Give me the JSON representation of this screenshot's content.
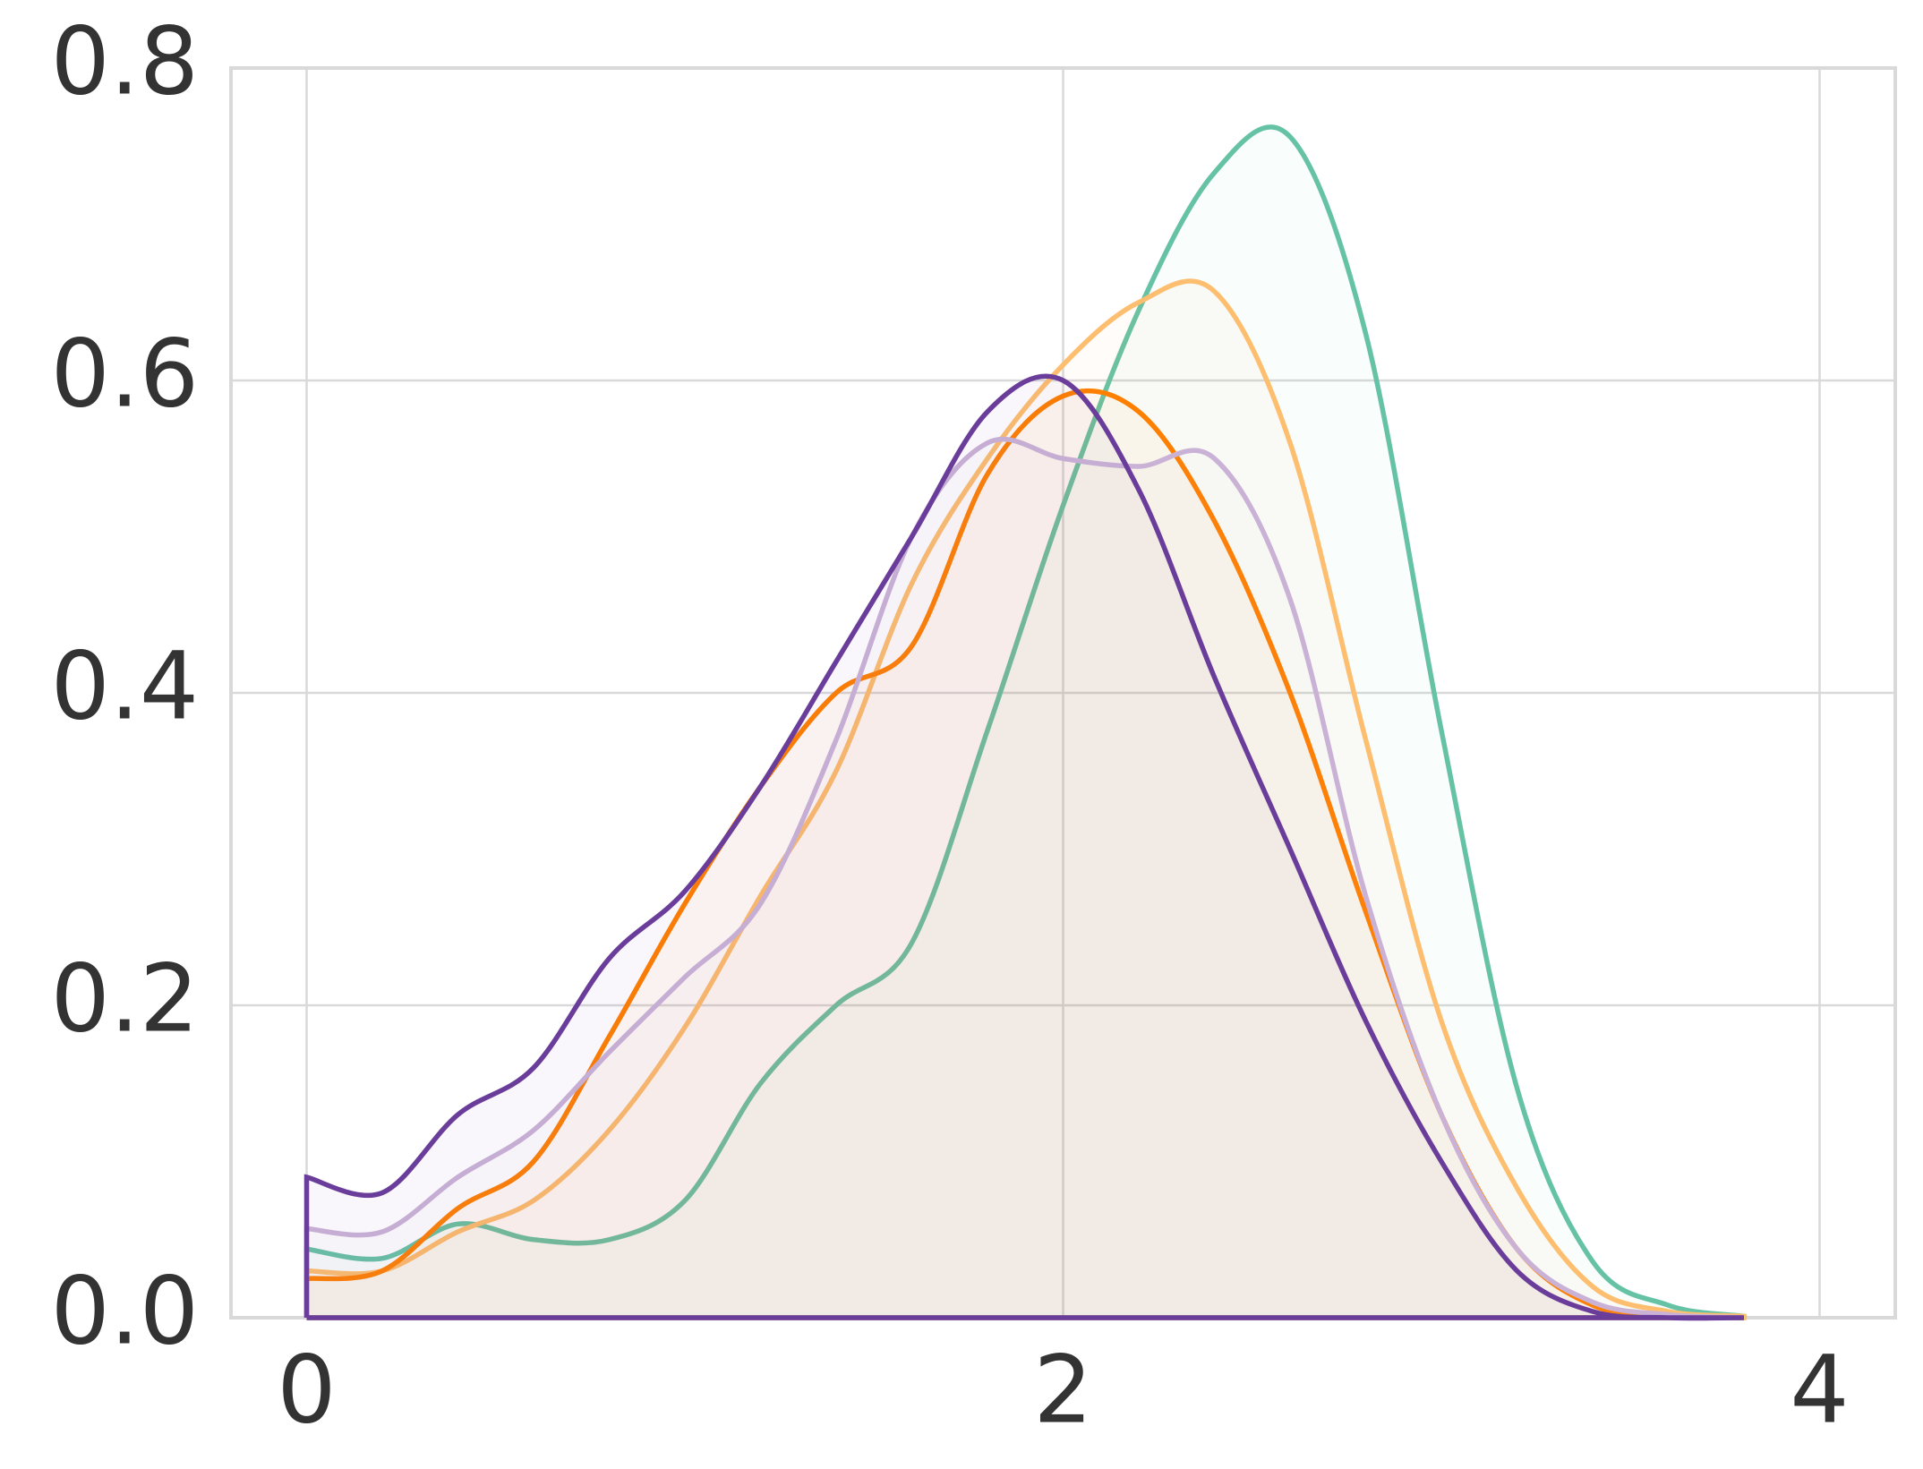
{
  "chart_data": {
    "type": "line",
    "x": [
      0,
      0.2,
      0.4,
      0.6,
      0.8,
      1.0,
      1.2,
      1.4,
      1.6,
      1.8,
      2.0,
      2.2,
      2.4,
      2.6,
      2.8,
      3.0,
      3.2,
      3.4,
      3.6,
      3.8
    ],
    "series": [
      {
        "color": "#66c2a5",
        "values": [
          0.044,
          0.038,
          0.06,
          0.05,
          0.05,
          0.075,
          0.15,
          0.2,
          0.24,
          0.376,
          0.52,
          0.645,
          0.733,
          0.756,
          0.63,
          0.376,
          0.147,
          0.036,
          0.008,
          0.001
        ]
      },
      {
        "color": "#fdbf6f",
        "values": [
          0.03,
          0.03,
          0.055,
          0.075,
          0.12,
          0.186,
          0.27,
          0.35,
          0.47,
          0.55,
          0.61,
          0.65,
          0.657,
          0.56,
          0.37,
          0.19,
          0.083,
          0.02,
          0.004,
          0.001
        ]
      },
      {
        "color": "#ff7f00",
        "values": [
          0.025,
          0.03,
          0.07,
          0.1,
          0.18,
          0.265,
          0.34,
          0.4,
          0.43,
          0.54,
          0.59,
          0.58,
          0.51,
          0.4,
          0.26,
          0.13,
          0.044,
          0.008,
          0.001,
          0
        ]
      },
      {
        "color": "#cab2d6",
        "values": [
          0.057,
          0.055,
          0.09,
          0.12,
          0.17,
          0.218,
          0.265,
          0.37,
          0.5,
          0.56,
          0.55,
          0.545,
          0.55,
          0.46,
          0.27,
          0.13,
          0.044,
          0.01,
          0.002,
          0
        ]
      },
      {
        "color": "#6a3d9a",
        "values": [
          0.09,
          0.08,
          0.13,
          0.16,
          0.23,
          0.273,
          0.34,
          0.42,
          0.5,
          0.58,
          0.6,
          0.53,
          0.41,
          0.3,
          0.19,
          0.1,
          0.03,
          0.004,
          0,
          0
        ]
      }
    ],
    "xlim": [
      -0.2,
      4.2
    ],
    "ylim": [
      0,
      0.8
    ],
    "xticks": [
      0,
      2,
      4
    ],
    "yticks": [
      {
        "value": 0,
        "label": "0.0"
      },
      0.2,
      0.4,
      0.6,
      0.8
    ],
    "grid": true
  }
}
